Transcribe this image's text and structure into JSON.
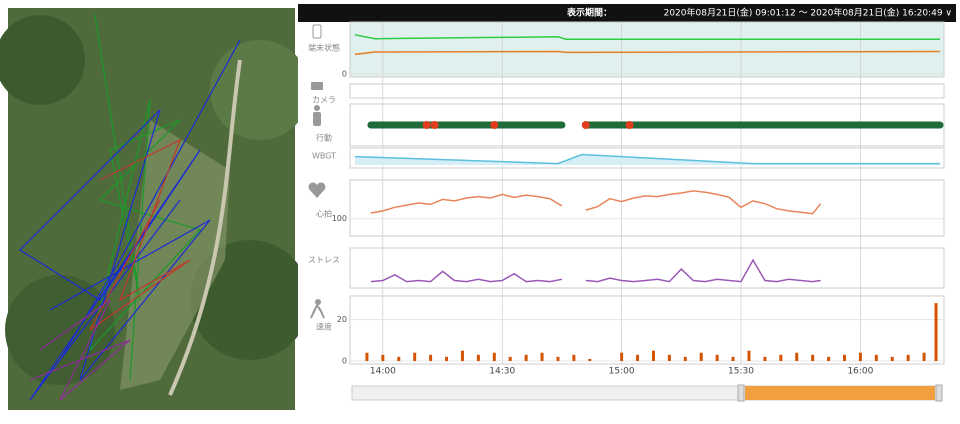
{
  "header": {
    "period_label": "表示期間：",
    "period": "2020年08月21日(金) 09:01:12 〜 2020年08月21日(金) 16:20:49 ∨"
  },
  "time_axis": {
    "xlim": [
      "13:53",
      "16:20"
    ],
    "xticks": [
      "14:00",
      "14:30",
      "15:00",
      "15:30",
      "16:00"
    ]
  },
  "chart_data": [
    {
      "type": "line",
      "label": "端末状態",
      "x": [
        "13:53",
        "13:58",
        "14:44",
        "14:46",
        "16:20"
      ],
      "series": [
        {
          "color": "#2ecc40",
          "values": [
            80,
            72,
            76,
            71,
            71
          ]
        },
        {
          "color": "#e67e22",
          "values": [
            40,
            45,
            46,
            44,
            46
          ]
        }
      ],
      "ylim": [
        0,
        100
      ],
      "yticks": [
        0
      ]
    },
    {
      "type": "empty",
      "label": "カメラ"
    },
    {
      "type": "timeline",
      "label": "行動",
      "segments": [
        [
          "13:57",
          "14:45"
        ],
        [
          "14:51",
          "16:20"
        ]
      ],
      "markers": [
        "14:11",
        "14:13",
        "14:28",
        "14:51",
        "15:02"
      ]
    },
    {
      "type": "area",
      "label": "WBGT",
      "x": [
        "13:53",
        "14:44",
        "14:50",
        "15:33",
        "16:20"
      ],
      "values": [
        22,
        12,
        25,
        12,
        12
      ],
      "color": "#5bc0de",
      "ylim": [
        10,
        30
      ]
    },
    {
      "type": "line",
      "label": "心拍",
      "x": [
        "13:57",
        "14:00",
        "14:03",
        "14:06",
        "14:09",
        "14:12",
        "14:15",
        "14:18",
        "14:21",
        "14:24",
        "14:27",
        "14:30",
        "14:33",
        "14:36",
        "14:39",
        "14:42",
        "14:45",
        "14:48",
        "14:51",
        "14:54",
        "14:57",
        "15:00",
        "15:03",
        "15:06",
        "15:09",
        "15:12",
        "15:15",
        "15:18",
        "15:21",
        "15:24",
        "15:27",
        "15:30",
        "15:33",
        "15:36",
        "15:39",
        "15:42",
        "15:45",
        "15:48",
        "15:50"
      ],
      "series": [
        {
          "color": "#e8845a",
          "values": [
            108,
            111,
            116,
            119,
            122,
            120,
            127,
            125,
            129,
            131,
            129,
            134,
            130,
            133,
            131,
            128,
            118,
            null,
            112,
            117,
            128,
            124,
            129,
            132,
            131,
            134,
            136,
            139,
            137,
            134,
            130,
            116,
            125,
            121,
            114,
            111,
            109,
            107,
            121
          ]
        }
      ],
      "ylim": [
        80,
        150
      ],
      "yticks": [
        100
      ]
    },
    {
      "type": "line",
      "label": "ストレス",
      "x": [
        "13:57",
        "14:00",
        "14:03",
        "14:06",
        "14:09",
        "14:12",
        "14:15",
        "14:18",
        "14:21",
        "14:24",
        "14:27",
        "14:30",
        "14:33",
        "14:36",
        "14:39",
        "14:42",
        "14:45",
        "14:48",
        "14:51",
        "14:54",
        "14:57",
        "15:00",
        "15:03",
        "15:06",
        "15:09",
        "15:12",
        "15:15",
        "15:18",
        "15:21",
        "15:24",
        "15:27",
        "15:30",
        "15:33",
        "15:36",
        "15:39",
        "15:42",
        "15:45",
        "15:48",
        "15:50"
      ],
      "series": [
        {
          "color": "#9b59b6",
          "values": [
            3,
            4,
            9,
            3,
            4,
            3,
            12,
            4,
            3,
            5,
            3,
            4,
            10,
            3,
            4,
            3,
            5,
            null,
            4,
            3,
            6,
            4,
            3,
            4,
            5,
            3,
            14,
            4,
            3,
            5,
            4,
            3,
            22,
            4,
            3,
            5,
            4,
            3,
            4
          ]
        }
      ],
      "ylim": [
        0,
        30
      ]
    },
    {
      "type": "bar",
      "label": "速度",
      "x": [
        "13:56",
        "14:00",
        "14:04",
        "14:08",
        "14:12",
        "14:16",
        "14:20",
        "14:24",
        "14:28",
        "14:32",
        "14:36",
        "14:40",
        "14:44",
        "14:48",
        "14:52",
        "14:56",
        "15:00",
        "15:04",
        "15:08",
        "15:12",
        "15:16",
        "15:20",
        "15:24",
        "15:28",
        "15:32",
        "15:36",
        "15:40",
        "15:44",
        "15:48",
        "15:52",
        "15:56",
        "16:00",
        "16:04",
        "16:08",
        "16:12",
        "16:16",
        "16:19"
      ],
      "values": [
        4,
        3,
        2,
        4,
        3,
        2,
        5,
        3,
        4,
        2,
        3,
        4,
        2,
        3,
        1,
        0,
        4,
        3,
        5,
        3,
        2,
        4,
        3,
        2,
        5,
        2,
        3,
        4,
        3,
        2,
        3,
        4,
        3,
        2,
        3,
        4,
        28
      ],
      "color": "#d35400",
      "ylim": [
        0,
        30
      ],
      "yticks": [
        0,
        20
      ]
    }
  ]
}
